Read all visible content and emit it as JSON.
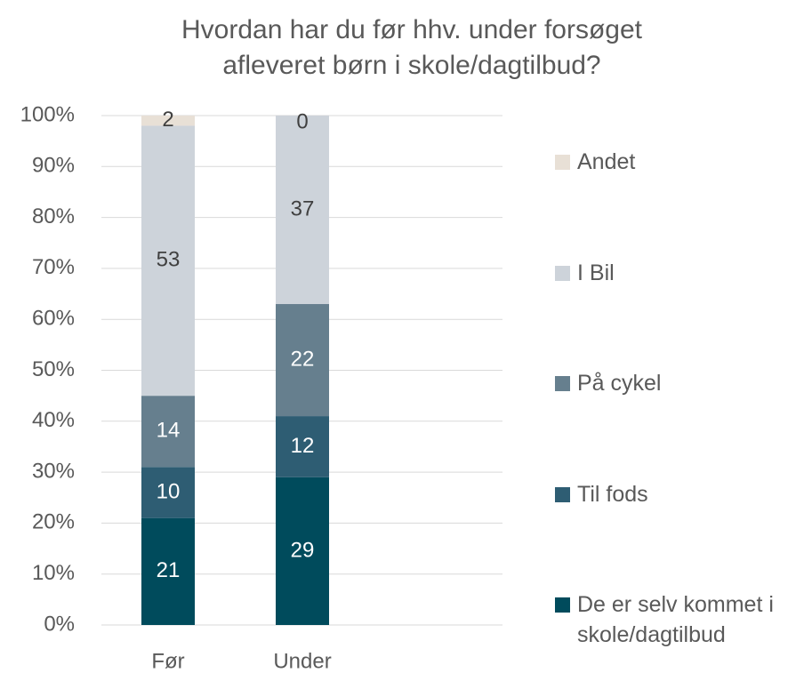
{
  "chart_data": {
    "type": "stacked_bar",
    "title": "Hvordan har du før hhv. under forsøget afleveret børn i skole/dagtilbud?",
    "categories": [
      "Før",
      "Under"
    ],
    "series": [
      {
        "name": "De er selv kommet i skole/dagtilbud",
        "color": "#004b5c",
        "values": [
          21,
          29
        ]
      },
      {
        "name": "Til fods",
        "color": "#2e5d73",
        "values": [
          10,
          12
        ]
      },
      {
        "name": "På cykel",
        "color": "#667f8e",
        "values": [
          14,
          22
        ]
      },
      {
        "name": "I Bil",
        "color": "#cdd3da",
        "values": [
          53,
          37
        ]
      },
      {
        "name": "Andet",
        "color": "#e8e0d6",
        "values": [
          2,
          0
        ]
      }
    ],
    "ylim": [
      0,
      100
    ],
    "yticks": [
      {
        "value": 0,
        "label": "0%"
      },
      {
        "value": 10,
        "label": "10%"
      },
      {
        "value": 20,
        "label": "20%"
      },
      {
        "value": 30,
        "label": "30%"
      },
      {
        "value": 40,
        "label": "40%"
      },
      {
        "value": 50,
        "label": "50%"
      },
      {
        "value": 60,
        "label": "60%"
      },
      {
        "value": 70,
        "label": "70%"
      },
      {
        "value": 80,
        "label": "80%"
      },
      {
        "value": 90,
        "label": "90%"
      },
      {
        "value": 100,
        "label": "100%"
      }
    ],
    "grid": true,
    "legend": "right"
  }
}
